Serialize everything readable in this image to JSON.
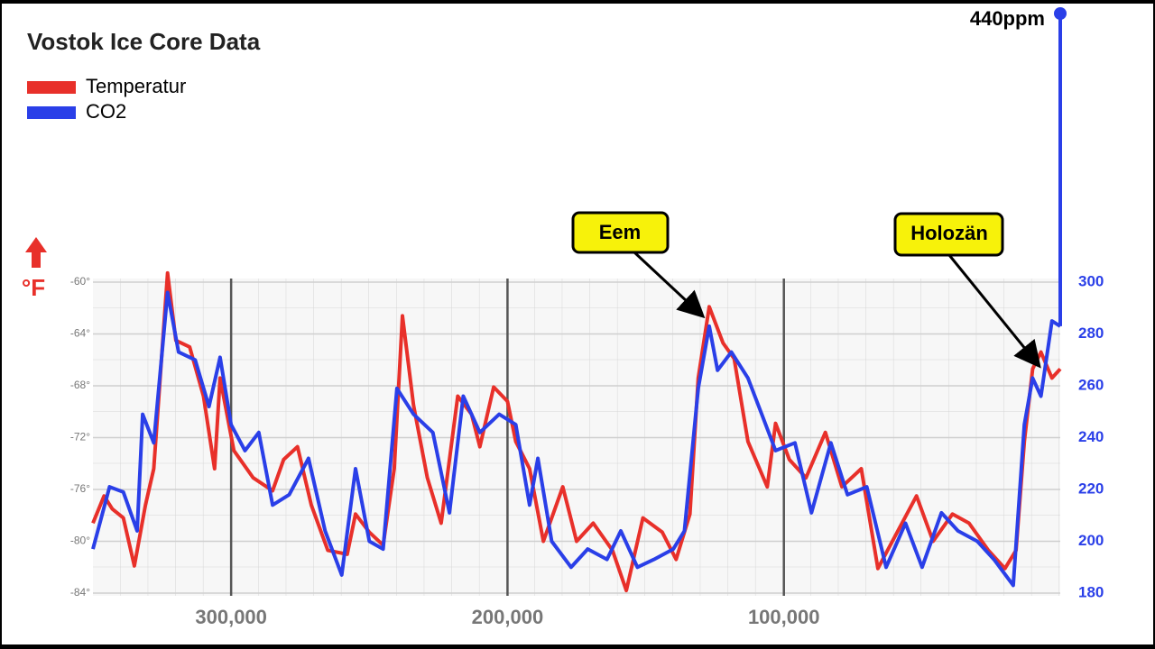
{
  "chart_data": {
    "type": "line",
    "title": "Vostok Ice Core Data",
    "y_unit_label": "°F",
    "xlim": [
      350000,
      0
    ],
    "xticks": [
      {
        "value": 300000,
        "label": "300,000"
      },
      {
        "value": 200000,
        "label": "200,000"
      },
      {
        "value": 100000,
        "label": "100,000"
      }
    ],
    "ylim": [
      -84,
      -60
    ],
    "yticks": [
      {
        "value": -60,
        "label": "-60°"
      },
      {
        "value": -64,
        "label": "-64°"
      },
      {
        "value": -68,
        "label": "-68°"
      },
      {
        "value": -72,
        "label": "-72°"
      },
      {
        "value": -76,
        "label": "-76°"
      },
      {
        "value": -80,
        "label": "-80°"
      },
      {
        "value": -84,
        "label": "-84°"
      }
    ],
    "y2lim": [
      180,
      300
    ],
    "y2ticks": [
      180,
      200,
      220,
      240,
      260,
      280,
      300
    ],
    "grid": true,
    "series": [
      {
        "name": "Temperatur",
        "color": "#e8302a",
        "x": [
          350000,
          346000,
          343000,
          339000,
          335000,
          331000,
          328000,
          323000,
          320000,
          315000,
          310000,
          306000,
          304000,
          299000,
          292000,
          285000,
          281000,
          276000,
          271000,
          265000,
          258000,
          255000,
          250000,
          245000,
          241000,
          238000,
          234000,
          229000,
          224000,
          218000,
          213000,
          210000,
          205000,
          200000,
          197000,
          192000,
          187000,
          180000,
          175000,
          169000,
          162000,
          157000,
          151000,
          144000,
          139000,
          134000,
          131000,
          127000,
          122000,
          118000,
          113000,
          106000,
          103000,
          98000,
          92000,
          85000,
          79000,
          72000,
          66000,
          59000,
          52000,
          46000,
          39000,
          33000,
          26000,
          20000,
          16000,
          13000,
          10000,
          7000,
          3000,
          0
        ],
        "values": [
          -78.6,
          -76.5,
          -77.5,
          -78.2,
          -81.9,
          -77.2,
          -74.4,
          -59.3,
          -64.5,
          -65,
          -68.8,
          -74.4,
          -67.4,
          -73,
          -75.1,
          -76.1,
          -73.7,
          -72.7,
          -77.2,
          -80.7,
          -81,
          -77.9,
          -79.3,
          -80.3,
          -74.4,
          -62.6,
          -69.5,
          -75.1,
          -78.6,
          -68.8,
          -70.2,
          -72.7,
          -68.1,
          -69.2,
          -72.3,
          -74.4,
          -80,
          -75.8,
          -80,
          -78.6,
          -80.7,
          -83.8,
          -78.2,
          -79.3,
          -81.4,
          -77.9,
          -67.4,
          -61.9,
          -64.7,
          -65.9,
          -72.3,
          -75.8,
          -70.9,
          -73.7,
          -75.1,
          -71.6,
          -75.8,
          -74.4,
          -82.1,
          -79.3,
          -76.5,
          -80,
          -77.9,
          -78.6,
          -80.7,
          -82.1,
          -80.7,
          -72.3,
          -66.7,
          -65.4,
          -67.4,
          -66.7
        ]
      },
      {
        "name": "CO2",
        "color": "#2a3fe8",
        "axis": "y2",
        "x": [
          350000,
          344000,
          339000,
          334000,
          332000,
          328000,
          323000,
          319000,
          313000,
          308000,
          304000,
          300000,
          295000,
          290000,
          285000,
          279000,
          272000,
          266000,
          260000,
          255000,
          250000,
          245000,
          240000,
          234000,
          227000,
          221000,
          216000,
          210000,
          203000,
          197000,
          192000,
          189000,
          184000,
          177000,
          171000,
          164000,
          159000,
          153000,
          147000,
          140000,
          136000,
          131000,
          127000,
          124000,
          119000,
          113000,
          108000,
          103000,
          96000,
          90000,
          83000,
          77000,
          70000,
          63000,
          56000,
          50000,
          43000,
          37000,
          30000,
          24000,
          17000,
          13000,
          10000,
          7000,
          3000,
          0
        ],
        "values": [
          197,
          221,
          219,
          204,
          249,
          238,
          296,
          273,
          270,
          252,
          271,
          245,
          235,
          242,
          214,
          218,
          232,
          204,
          187,
          228,
          200,
          197,
          259,
          249,
          242,
          211,
          256,
          242,
          249,
          245,
          214,
          232,
          200,
          190,
          197,
          193,
          204,
          190,
          193,
          197,
          204,
          259,
          283,
          266,
          273,
          263,
          249,
          235,
          238,
          211,
          238,
          218,
          221,
          190,
          207,
          190,
          211,
          204,
          200,
          193,
          183,
          245,
          263,
          256,
          285,
          283
        ]
      }
    ],
    "current_co2": {
      "value": 440,
      "label": "440ppm"
    },
    "annotations": [
      "Eem",
      "Holozän"
    ]
  }
}
